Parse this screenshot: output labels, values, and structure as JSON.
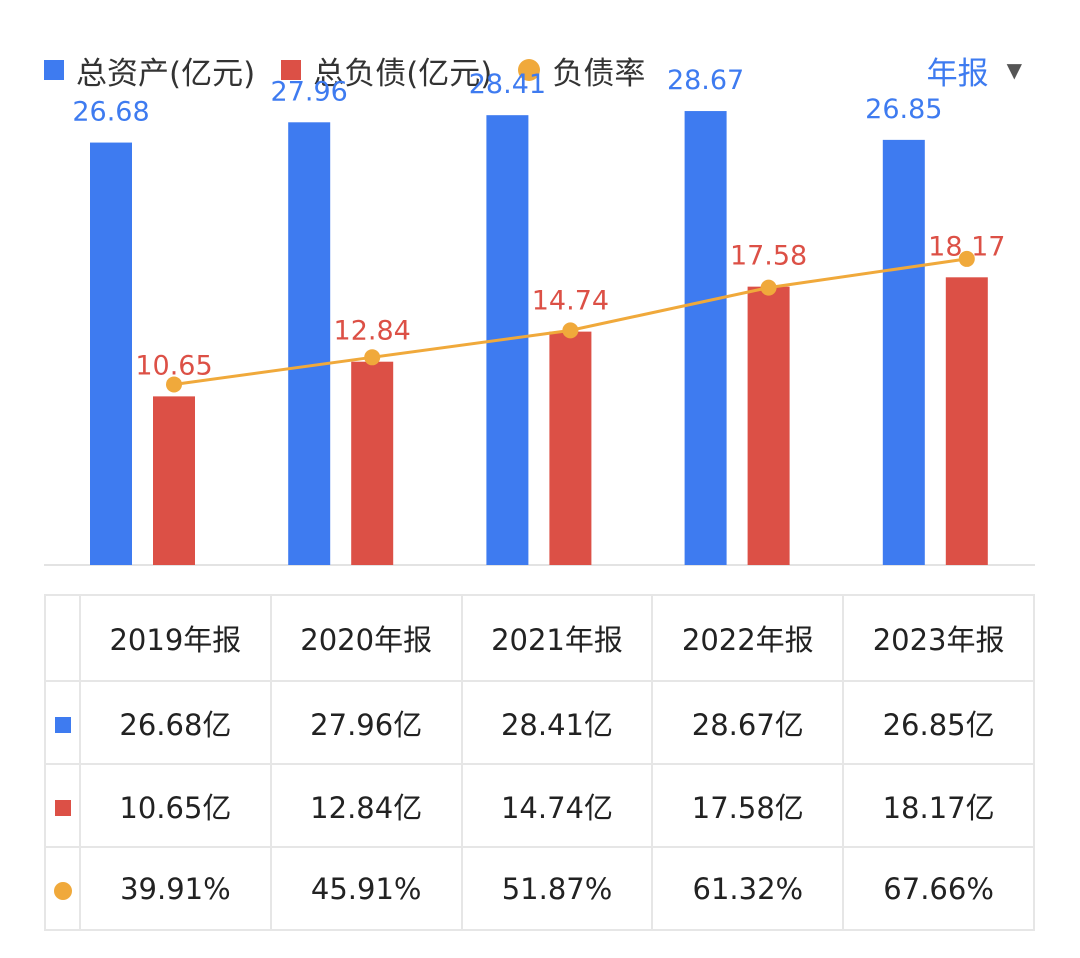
{
  "legend": {
    "assets": "总资产(亿元)",
    "liabilities": "总负债(亿元)",
    "ratio": "负债率"
  },
  "period_selector": {
    "label": "年报"
  },
  "colors": {
    "assets": "#3e7bf0",
    "liabilities": "#dc5046",
    "ratio": "#f0a93b"
  },
  "chart_data": {
    "type": "bar",
    "categories": [
      "2019年报",
      "2020年报",
      "2021年报",
      "2022年报",
      "2023年报"
    ],
    "series": [
      {
        "name": "总资产(亿元)",
        "values": [
          26.68,
          27.96,
          28.41,
          28.67,
          26.85
        ],
        "labels": [
          "26.68",
          "27.96",
          "28.41",
          "28.67",
          "26.85"
        ]
      },
      {
        "name": "总负债(亿元)",
        "values": [
          10.65,
          12.84,
          14.74,
          17.58,
          18.17
        ],
        "labels": [
          "10.65",
          "12.84",
          "14.74",
          "17.58",
          "18.17"
        ]
      },
      {
        "name": "负债率",
        "type": "line",
        "values": [
          39.91,
          45.91,
          51.87,
          61.32,
          67.66
        ]
      }
    ],
    "ylim": [
      0,
      30
    ],
    "ratio_ylim": [
      0,
      105
    ]
  },
  "table": {
    "headers": [
      "2019年报",
      "2020年报",
      "2021年报",
      "2022年报",
      "2023年报"
    ],
    "rows": [
      {
        "marker": "square",
        "color": "#3e7bf0",
        "cells": [
          "26.68亿",
          "27.96亿",
          "28.41亿",
          "28.67亿",
          "26.85亿"
        ]
      },
      {
        "marker": "square",
        "color": "#dc5046",
        "cells": [
          "10.65亿",
          "12.84亿",
          "14.74亿",
          "17.58亿",
          "18.17亿"
        ]
      },
      {
        "marker": "circle",
        "color": "#f0a93b",
        "cells": [
          "39.91%",
          "45.91%",
          "51.87%",
          "61.32%",
          "67.66%"
        ]
      }
    ]
  }
}
